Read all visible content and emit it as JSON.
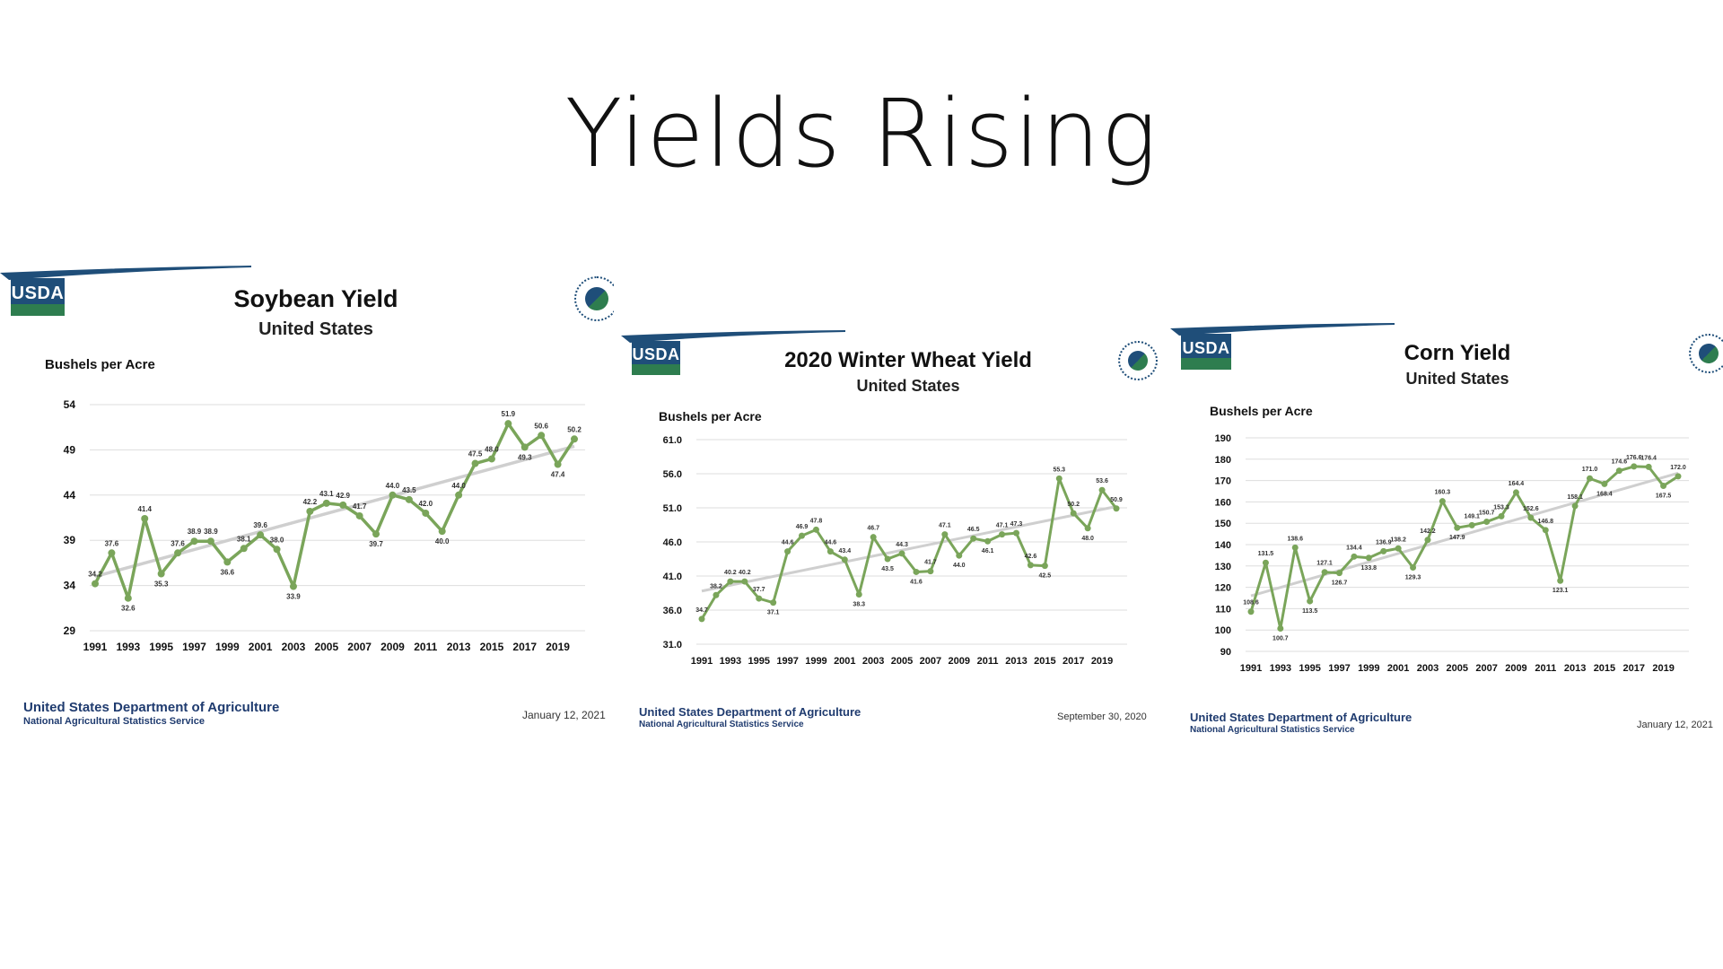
{
  "slide": {
    "title": "Yields Rising"
  },
  "footer": {
    "dept": "United States Department of Agriculture",
    "service": "National Agricultural Statistics Service"
  },
  "logo": {
    "text": "USDA"
  },
  "colors": {
    "line": "#7aa55a",
    "trend": "#cfcfcf",
    "banner_blue": "#1f4e79",
    "banner_green": "#2e7d4f",
    "footer_text": "#1f3b6f"
  },
  "chart_data": [
    {
      "type": "line",
      "title": "Soybean Yield",
      "subtitle": "United States",
      "ylabel": "Bushels per Acre",
      "date": "January 12, 2021",
      "x": [
        1991,
        1992,
        1993,
        1994,
        1995,
        1996,
        1997,
        1998,
        1999,
        2000,
        2001,
        2002,
        2003,
        2004,
        2005,
        2006,
        2007,
        2008,
        2009,
        2010,
        2011,
        2012,
        2013,
        2014,
        2015,
        2016,
        2017,
        2018,
        2019,
        2020
      ],
      "x_ticks": [
        "1991",
        "1993",
        "1995",
        "1997",
        "1999",
        "2001",
        "2003",
        "2005",
        "2007",
        "2009",
        "2011",
        "2013",
        "2015",
        "2017",
        "2019"
      ],
      "y_ticks": [
        "54",
        "49",
        "44",
        "39",
        "34",
        "29"
      ],
      "ylim": [
        29,
        54
      ],
      "values": [
        34.2,
        37.6,
        32.6,
        41.4,
        35.3,
        37.6,
        38.9,
        38.9,
        36.6,
        38.1,
        39.6,
        38.0,
        33.9,
        42.2,
        43.1,
        42.9,
        41.7,
        39.7,
        44.0,
        43.5,
        42.0,
        40.0,
        44.0,
        47.5,
        48.0,
        51.9,
        49.3,
        50.6,
        47.4,
        50.2
      ],
      "labels": [
        "34.2",
        "37.6",
        "32.6",
        "41.4",
        "35.3",
        "37.6",
        "38.9",
        "38.9",
        "36.6",
        "38.1",
        "39.6",
        "38.0",
        "33.9",
        "42.2",
        "43.1",
        "42.9",
        "41.7",
        "39.7",
        "44.0",
        "43.5",
        "42.0",
        "40.0",
        "44.0",
        "47.5",
        "48.0",
        "51.9",
        "49.3",
        "50.6",
        "47.4",
        "50.2"
      ],
      "trend": [
        35.0,
        49.4
      ],
      "grid": true
    },
    {
      "type": "line",
      "title": "2020 Winter Wheat Yield",
      "subtitle": "United States",
      "ylabel": "Bushels per Acre",
      "date": "September 30, 2020",
      "x": [
        1991,
        1992,
        1993,
        1994,
        1995,
        1996,
        1997,
        1998,
        1999,
        2000,
        2001,
        2002,
        2003,
        2004,
        2005,
        2006,
        2007,
        2008,
        2009,
        2010,
        2011,
        2012,
        2013,
        2014,
        2015,
        2016,
        2017,
        2018,
        2019,
        2020
      ],
      "x_ticks": [
        "1991",
        "1993",
        "1995",
        "1997",
        "1999",
        "2001",
        "2003",
        "2005",
        "2007",
        "2009",
        "2011",
        "2013",
        "2015",
        "2017",
        "2019"
      ],
      "y_ticks": [
        "61.0",
        "56.0",
        "51.0",
        "46.0",
        "41.0",
        "36.0",
        "31.0"
      ],
      "ylim": [
        31,
        61
      ],
      "values": [
        34.7,
        38.2,
        40.2,
        40.2,
        37.7,
        37.1,
        44.6,
        46.9,
        47.8,
        44.6,
        43.4,
        38.3,
        46.7,
        43.5,
        44.3,
        41.6,
        41.7,
        47.1,
        44.0,
        46.5,
        46.1,
        47.1,
        47.3,
        42.6,
        42.5,
        55.3,
        50.2,
        48.0,
        53.6,
        50.9
      ],
      "labels": [
        "34.7",
        "38.2",
        "40.2",
        "40.2",
        "37.7",
        "37.1",
        "44.6",
        "46.9",
        "47.8",
        "44.6",
        "43.4",
        "38.3",
        "46.7",
        "43.5",
        "44.3",
        "41.6",
        "41.7",
        "47.1",
        "44.0",
        "46.5",
        "46.1",
        "47.1",
        "47.3",
        "42.6",
        "42.5",
        "55.3",
        "50.2",
        "48.0",
        "53.6",
        "50.9"
      ],
      "trend": [
        38.8,
        51.2
      ],
      "grid": true
    },
    {
      "type": "line",
      "title": "Corn Yield",
      "subtitle": "United States",
      "ylabel": "Bushels per Acre",
      "date": "January 12, 2021",
      "x": [
        1991,
        1992,
        1993,
        1994,
        1995,
        1996,
        1997,
        1998,
        1999,
        2000,
        2001,
        2002,
        2003,
        2004,
        2005,
        2006,
        2007,
        2008,
        2009,
        2010,
        2011,
        2012,
        2013,
        2014,
        2015,
        2016,
        2017,
        2018,
        2019,
        2020
      ],
      "x_ticks": [
        "1991",
        "1993",
        "1995",
        "1997",
        "1999",
        "2001",
        "2003",
        "2005",
        "2007",
        "2009",
        "2011",
        "2013",
        "2015",
        "2017",
        "2019"
      ],
      "y_ticks": [
        "190",
        "180",
        "170",
        "160",
        "150",
        "140",
        "130",
        "120",
        "110",
        "100",
        "90"
      ],
      "ylim": [
        90,
        190
      ],
      "values": [
        108.6,
        131.5,
        100.7,
        138.6,
        113.5,
        127.1,
        126.7,
        134.4,
        133.8,
        136.9,
        138.2,
        129.3,
        142.2,
        160.3,
        147.9,
        149.1,
        150.7,
        153.3,
        164.4,
        152.6,
        146.8,
        123.1,
        158.1,
        171.0,
        168.4,
        174.6,
        176.6,
        176.4,
        167.5,
        172.0
      ],
      "labels": [
        "108.6",
        "131.5",
        "100.7",
        "138.6",
        "113.5",
        "127.1",
        "126.7",
        "134.4",
        "133.8",
        "136.9",
        "138.2",
        "129.3",
        "142.2",
        "160.3",
        "147.9",
        "149.1",
        "150.7",
        "153.3",
        "164.4",
        "152.6",
        "146.8",
        "123.1",
        "158.1",
        "171.0",
        "168.4",
        "174.6",
        "176.6",
        "176.4",
        "167.5",
        "172.0"
      ],
      "trend": [
        116.0,
        173.5
      ],
      "grid": true
    }
  ]
}
